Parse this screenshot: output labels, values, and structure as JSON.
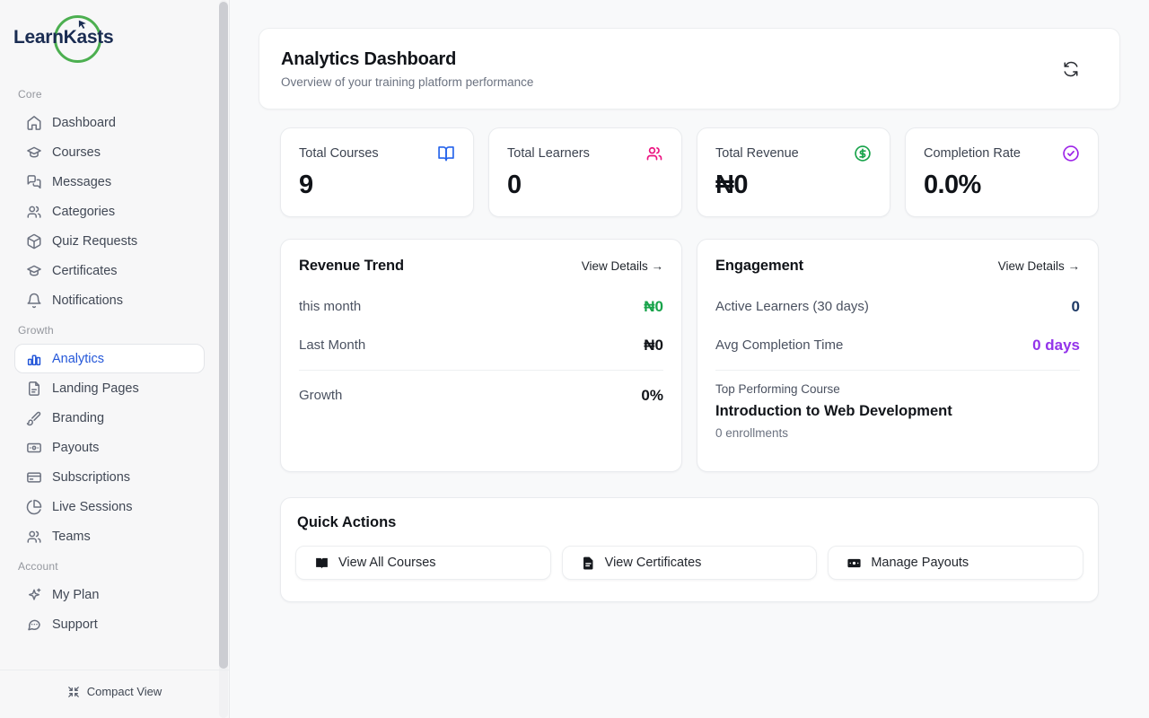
{
  "brand": {
    "name": "LearnKasts",
    "ring_color": "#4caf50",
    "text_color": "#1a2c52",
    "cursor_icon": "cursor-icon"
  },
  "sidebar": {
    "sections": [
      {
        "label": "Core",
        "items": [
          {
            "label": "Dashboard",
            "icon": "home-icon",
            "active": false
          },
          {
            "label": "Courses",
            "icon": "graduation-cap-icon",
            "active": false
          },
          {
            "label": "Messages",
            "icon": "chat-bubbles-icon",
            "active": false
          },
          {
            "label": "Categories",
            "icon": "users-icon",
            "active": false
          },
          {
            "label": "Quiz Requests",
            "icon": "package-icon",
            "active": false
          },
          {
            "label": "Certificates",
            "icon": "graduation-cap-icon",
            "active": false
          },
          {
            "label": "Notifications",
            "icon": "bell-icon",
            "active": false
          }
        ]
      },
      {
        "label": "Growth",
        "items": [
          {
            "label": "Analytics",
            "icon": "bar-chart-icon",
            "active": true
          },
          {
            "label": "Landing Pages",
            "icon": "file-icon",
            "active": false
          },
          {
            "label": "Branding",
            "icon": "paintbrush-icon",
            "active": false
          },
          {
            "label": "Payouts",
            "icon": "banknote-icon",
            "active": false
          },
          {
            "label": "Subscriptions",
            "icon": "credit-card-icon",
            "active": false
          },
          {
            "label": "Live Sessions",
            "icon": "pie-chart-icon",
            "active": false
          },
          {
            "label": "Teams",
            "icon": "users-icon",
            "active": false
          }
        ]
      },
      {
        "label": "Account",
        "items": [
          {
            "label": "My Plan",
            "icon": "sparkles-icon",
            "active": false
          },
          {
            "label": "Support",
            "icon": "chat-dots-icon",
            "active": false
          }
        ]
      }
    ],
    "footer": {
      "label": "Compact View",
      "icon": "compress-icon"
    },
    "active_color": "#2457d9"
  },
  "header": {
    "title": "Analytics Dashboard",
    "subtitle": "Overview of your training platform performance",
    "refresh_icon": "refresh-icon"
  },
  "stats": [
    {
      "label": "Total Courses",
      "value": "9",
      "icon": "book-open-icon",
      "icon_color": "#2563eb"
    },
    {
      "label": "Total Learners",
      "value": "0",
      "icon": "users-icon",
      "icon_color": "#ec1380"
    },
    {
      "label": "Total Revenue",
      "value": "₦0",
      "icon": "circle-dollar-icon",
      "icon_color": "#17a34a"
    },
    {
      "label": "Completion Rate",
      "value": "0.0%",
      "icon": "circle-check-icon",
      "icon_color": "#9d24e8"
    }
  ],
  "revenue_trend": {
    "title": "Revenue Trend",
    "link": "View Details →",
    "rows": [
      {
        "label": "this month",
        "value": "₦0",
        "value_color": "#17a34a",
        "divider_before": false
      },
      {
        "label": "Last Month",
        "value": "₦0",
        "value_color": "#111419",
        "divider_before": false
      },
      {
        "label": "Growth",
        "value": "0%",
        "value_color": "#111419",
        "divider_before": true
      }
    ]
  },
  "engagement": {
    "title": "Engagement",
    "link": "View Details →",
    "rows": [
      {
        "label": "Active Learners (30 days)",
        "value": "0",
        "value_color": "#1e3a66"
      },
      {
        "label": "Avg Completion Time",
        "value": "0 days",
        "value_color": "#9333ea"
      }
    ],
    "top_course": {
      "label": "Top Performing Course",
      "name": "Introduction to Web Development",
      "meta": "0 enrollments"
    }
  },
  "quick": {
    "title": "Quick Actions",
    "actions": [
      {
        "label": "View All Courses",
        "icon": "book-solid-icon"
      },
      {
        "label": "View Certificates",
        "icon": "file-text-solid-icon"
      },
      {
        "label": "Manage Payouts",
        "icon": "banknote-solid-icon"
      }
    ]
  }
}
